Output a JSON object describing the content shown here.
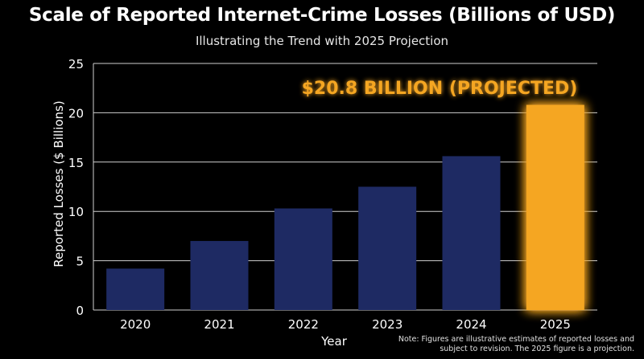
{
  "chart_data": {
    "type": "bar",
    "title": "Scale of Reported Internet-Crime Losses (Billions of USD)",
    "subtitle": "Illustrating the Trend with 2025 Projection",
    "xlabel": "Year",
    "ylabel": "Reported Losses ($ Billions)",
    "categories": [
      "2020",
      "2021",
      "2022",
      "2023",
      "2024",
      "2025"
    ],
    "values": [
      4.2,
      7.0,
      10.3,
      12.5,
      15.6,
      20.8
    ],
    "ylim": [
      0,
      25
    ],
    "yticks": [
      0,
      5,
      10,
      15,
      20,
      25
    ],
    "grid": true,
    "highlight_index": 5,
    "annotation": "$20.8 BILLION (PROJECTED)",
    "note": "Note: Figures are illustrative estimates of reported losses and subject to revision. The 2025 figure is a projection.",
    "colors": {
      "bar": "#1e2a63",
      "highlight": "#f5a623",
      "highlight_glow": "#ffb347",
      "grid": "#cfcfcf",
      "background": "#000000"
    }
  }
}
